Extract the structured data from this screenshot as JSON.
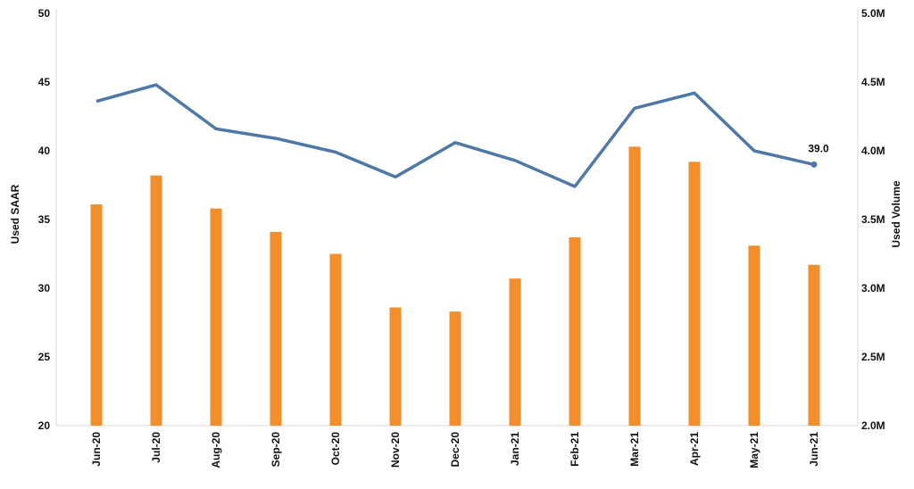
{
  "chart_data": {
    "type": "bar+line",
    "categories": [
      "Jun-20",
      "Jul-20",
      "Aug-20",
      "Sep-20",
      "Oct-20",
      "Nov-20",
      "Dec-20",
      "Jan-21",
      "Feb-21",
      "Mar-21",
      "Apr-21",
      "May-21",
      "Jun-21"
    ],
    "left_axis": {
      "label": "Used SAAR",
      "range": [
        20,
        50
      ],
      "ticks": [
        "20",
        "25",
        "30",
        "35",
        "40",
        "45",
        "50"
      ]
    },
    "right_axis": {
      "label": "Used Volume",
      "range": [
        2000000,
        5000000
      ],
      "ticks": [
        "2.0M",
        "2.5M",
        "3.0M",
        "3.5M",
        "4.0M",
        "4.5M",
        "5.0M"
      ]
    },
    "series": [
      {
        "type": "line",
        "axis": "left",
        "color": "#4e79a7",
        "values": [
          43.6,
          44.8,
          41.6,
          40.9,
          39.9,
          38.1,
          40.6,
          39.3,
          37.4,
          43.1,
          44.2,
          40.0,
          39.0
        ]
      },
      {
        "type": "bar",
        "axis": "right",
        "color": "#f28e2b",
        "values": [
          3610000,
          3820000,
          3580000,
          3410000,
          3250000,
          2860000,
          2830000,
          3070000,
          3370000,
          4030000,
          3920000,
          3310000,
          3170000
        ]
      }
    ],
    "annotations": [
      {
        "category": "Jun-21",
        "series": 0,
        "text": "39.0"
      }
    ],
    "grid": false,
    "legend": "none"
  }
}
